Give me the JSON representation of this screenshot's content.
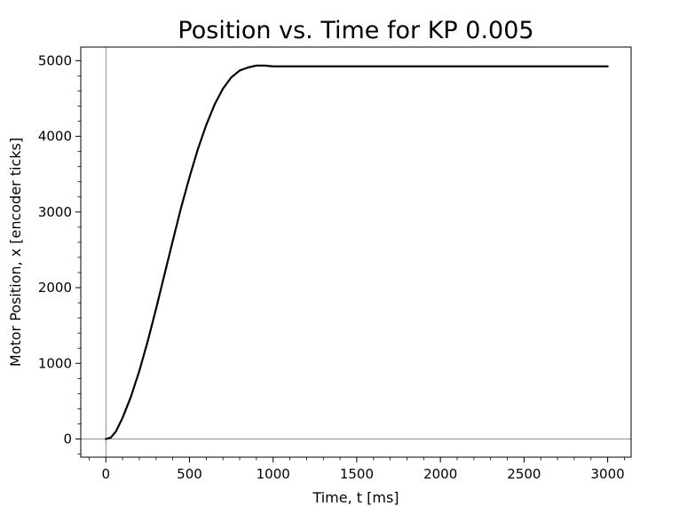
{
  "chart_data": {
    "type": "line",
    "title": "Position vs. Time for KP 0.005",
    "xlabel": "Time, t [ms]",
    "ylabel": "Motor Position, x [encoder ticks]",
    "xlim": [
      -150,
      3140
    ],
    "ylim": [
      -240,
      5180
    ],
    "xticks": [
      0,
      500,
      1000,
      1500,
      2000,
      2500,
      3000
    ],
    "yticks": [
      0,
      1000,
      2000,
      3000,
      4000,
      5000
    ],
    "x_minor_step": 100,
    "y_minor_step": 200,
    "reference_lines": {
      "x": 0,
      "y": 0
    },
    "grid": false,
    "series": [
      {
        "color": "#000000",
        "points": [
          [
            0,
            0
          ],
          [
            30,
            20
          ],
          [
            60,
            100
          ],
          [
            100,
            280
          ],
          [
            150,
            560
          ],
          [
            200,
            900
          ],
          [
            250,
            1290
          ],
          [
            300,
            1720
          ],
          [
            350,
            2170
          ],
          [
            400,
            2620
          ],
          [
            450,
            3060
          ],
          [
            500,
            3460
          ],
          [
            550,
            3830
          ],
          [
            600,
            4150
          ],
          [
            650,
            4420
          ],
          [
            700,
            4630
          ],
          [
            750,
            4780
          ],
          [
            800,
            4870
          ],
          [
            850,
            4910
          ],
          [
            900,
            4935
          ],
          [
            950,
            4935
          ],
          [
            1000,
            4925
          ],
          [
            1100,
            4925
          ],
          [
            1500,
            4925
          ],
          [
            2000,
            4925
          ],
          [
            2500,
            4925
          ],
          [
            3000,
            4925
          ]
        ]
      }
    ]
  }
}
